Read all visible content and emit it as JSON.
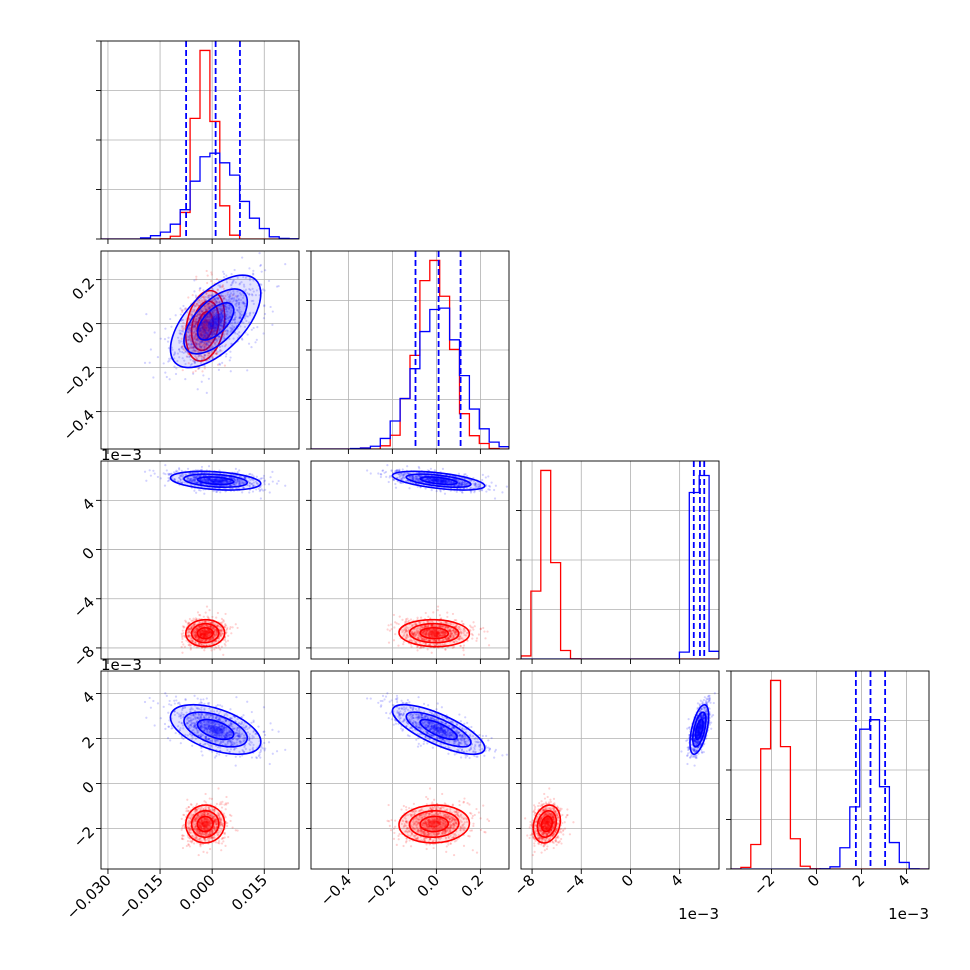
{
  "chart_data": {
    "type": "scatter",
    "plot_kind": "corner",
    "grid": true,
    "colors": {
      "posterior_a": "#ff0000",
      "posterior_b": "#0000ff",
      "quantile_lines": "#0000ff"
    },
    "dimensions": [
      {
        "range": [
          -0.032,
          0.025
        ],
        "scale_multiplier": 1,
        "offset_label": "",
        "ticks": [
          -0.03,
          -0.015,
          0.0,
          0.015
        ],
        "tick_labels": [
          "−0.030",
          "−0.015",
          "0.000",
          "0.015"
        ]
      },
      {
        "range": [
          -0.57,
          0.33
        ],
        "scale_multiplier": 1,
        "offset_label": "",
        "ticks": [
          -0.4,
          -0.2,
          0.0,
          0.2
        ],
        "tick_labels": [
          "−0.4",
          "−0.2",
          "0.0",
          "0.2"
        ]
      },
      {
        "range": [
          -8.9,
          7.2
        ],
        "scale_multiplier": 0.001,
        "offset_label": "1e−3",
        "ticks": [
          -8,
          -4,
          0,
          4
        ],
        "tick_labels": [
          "−8",
          "−4",
          "0",
          "4"
        ]
      },
      {
        "range": [
          -3.8,
          5.0
        ],
        "scale_multiplier": 0.001,
        "offset_label": "1e−3",
        "ticks": [
          -2,
          0,
          2,
          4
        ],
        "tick_labels": [
          "−2",
          "0",
          "2",
          "4"
        ]
      }
    ],
    "series": [
      {
        "color": "#ff0000",
        "mean": [
          -0.002,
          -0.01,
          -6.8,
          -1.8
        ],
        "sd": [
          0.0028,
          0.08,
          0.55,
          0.42
        ],
        "corr": [
          [
            1,
            0.25,
            0.02,
            0.02
          ],
          [
            0.25,
            1,
            -0.05,
            0.05
          ],
          [
            0.02,
            -0.05,
            1,
            0.2
          ],
          [
            0.02,
            0.05,
            0.2,
            1
          ]
        ]
      },
      {
        "color": "#0000ff",
        "mean": [
          0.001,
          0.01,
          5.6,
          2.4
        ],
        "sd": [
          0.0065,
          0.105,
          0.38,
          0.55
        ],
        "corr": [
          [
            1,
            0.6,
            -0.3,
            -0.5
          ],
          [
            0.6,
            1,
            -0.55,
            -0.75
          ],
          [
            -0.3,
            -0.55,
            1,
            0.55
          ],
          [
            -0.5,
            -0.75,
            0.55,
            1
          ]
        ]
      }
    ],
    "quantiles": [
      [
        -0.0075,
        0.001,
        0.008
      ],
      [
        -0.095,
        0.01,
        0.11
      ],
      [
        5.15,
        5.65,
        6.0
      ],
      [
        1.75,
        2.4,
        3.05
      ]
    ]
  }
}
